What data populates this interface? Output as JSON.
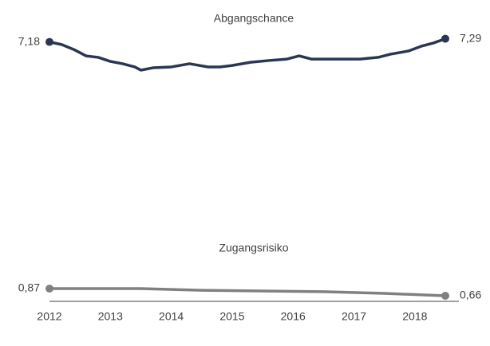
{
  "chart_data": [
    {
      "type": "line",
      "title": "Abgangschance",
      "color": "#2b3752",
      "x": [
        2012,
        2012.2,
        2012.4,
        2012.6,
        2012.8,
        2013.0,
        2013.2,
        2013.4,
        2013.5,
        2013.7,
        2014.0,
        2014.3,
        2014.6,
        2014.8,
        2015.0,
        2015.3,
        2015.6,
        2015.9,
        2016.1,
        2016.3,
        2016.6,
        2016.9,
        2017.1,
        2017.4,
        2017.6,
        2017.9,
        2018.1,
        2018.3,
        2018.5
      ],
      "values": [
        7.18,
        7.09,
        6.92,
        6.7,
        6.65,
        6.51,
        6.43,
        6.32,
        6.21,
        6.29,
        6.32,
        6.43,
        6.32,
        6.32,
        6.37,
        6.48,
        6.54,
        6.59,
        6.7,
        6.59,
        6.59,
        6.59,
        6.59,
        6.65,
        6.76,
        6.87,
        7.03,
        7.14,
        7.29
      ],
      "value_labels": [
        "7,18",
        null,
        null,
        null,
        null,
        null,
        null,
        null,
        null,
        null,
        null,
        null,
        null,
        null,
        null,
        null,
        null,
        null,
        null,
        null,
        null,
        null,
        null,
        null,
        null,
        null,
        null,
        null,
        "7,29"
      ],
      "xlim": [
        2012,
        2018.5
      ],
      "ylim": [
        3,
        7.8
      ]
    },
    {
      "type": "line",
      "title": "Zugangsrisiko",
      "color": "#808080",
      "x": [
        2012,
        2013.5,
        2014.5,
        2016.5,
        2017.5,
        2018.5
      ],
      "values": [
        0.87,
        0.87,
        0.82,
        0.78,
        0.73,
        0.66
      ],
      "value_labels": [
        "0,87",
        null,
        null,
        null,
        null,
        "0,66"
      ],
      "xlim": [
        2012,
        2018.5
      ],
      "ylim": [
        0,
        1.5
      ],
      "xticks": [
        2012,
        2013,
        2014,
        2015,
        2016,
        2017,
        2018
      ]
    }
  ]
}
